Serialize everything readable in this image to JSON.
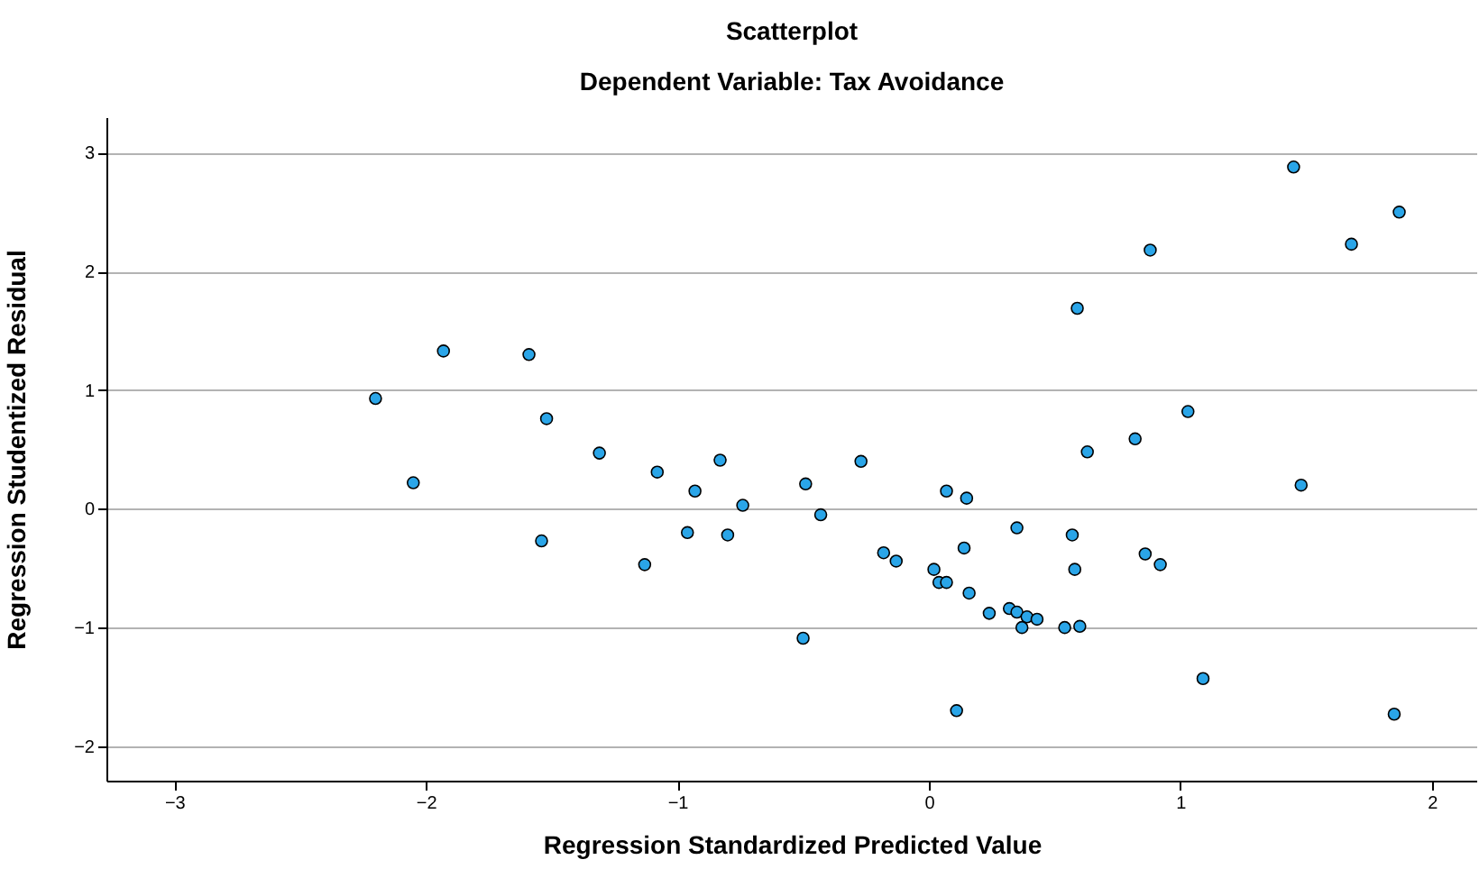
{
  "chart_data": {
    "type": "scatter",
    "title": "Scatterplot",
    "subtitle": "Dependent Variable: Tax Avoidance",
    "xlabel": "Regression Standardized Predicted Value",
    "ylabel": "Regression Studentized Residual",
    "xlim": [
      -3.27,
      2.18
    ],
    "ylim": [
      -2.29,
      3.3
    ],
    "xticks": [
      -3,
      -2,
      -1,
      0,
      1,
      2
    ],
    "yticks": [
      -2,
      -1,
      0,
      1,
      2,
      3
    ],
    "grid": "y",
    "marker": "circle",
    "series": [
      {
        "color": "#2aa5e8",
        "x": [
          -2.2,
          -2.05,
          -1.93,
          -1.59,
          -1.52,
          -1.54,
          -1.31,
          -1.08,
          -1.13,
          -0.83,
          -0.93,
          -0.74,
          -0.96,
          -0.8,
          -0.5,
          -0.49,
          -0.43,
          -0.27,
          -0.18,
          -0.13,
          1.45,
          1.87,
          1.68,
          0.88,
          0.59,
          1.03,
          0.82,
          0.63,
          1.48,
          0.07,
          0.15,
          0.35,
          0.57,
          0.14,
          0.02,
          0.04,
          0.07,
          0.58,
          0.86,
          0.92,
          0.16,
          0.24,
          0.32,
          0.35,
          0.39,
          0.43,
          0.37,
          0.54,
          0.6,
          1.09,
          0.11,
          1.85
        ],
        "values": [
          0.93,
          0.22,
          1.33,
          1.3,
          0.76,
          -0.27,
          0.47,
          0.31,
          -0.47,
          0.41,
          0.15,
          0.03,
          -0.2,
          -0.22,
          -1.09,
          0.21,
          -0.05,
          0.4,
          -0.37,
          -0.44,
          2.88,
          2.5,
          2.23,
          2.18,
          1.69,
          0.82,
          0.59,
          0.48,
          0.2,
          0.15,
          0.09,
          -0.16,
          -0.22,
          -0.33,
          -0.51,
          -0.62,
          -0.62,
          -0.51,
          -0.38,
          -0.47,
          -0.71,
          -0.88,
          -0.84,
          -0.87,
          -0.91,
          -0.93,
          -1.0,
          -1.0,
          -0.99,
          -1.43,
          -1.7,
          -1.73
        ]
      }
    ]
  }
}
